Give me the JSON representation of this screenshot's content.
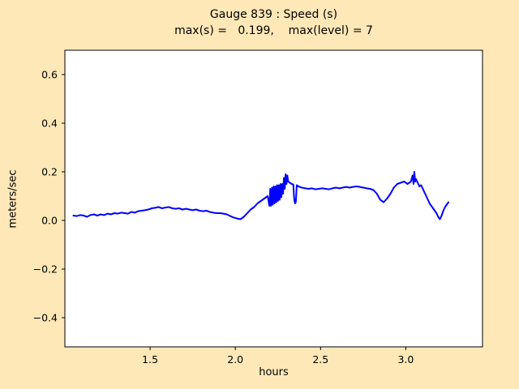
{
  "figure": {
    "background_color": "#ffe8b8",
    "plot_background": "#ffffff",
    "border_color": "#000000"
  },
  "chart_data": {
    "type": "line",
    "title": "Gauge 839 : Speed (s)",
    "subtitle": "max(s) =   0.199,    max(level) = 7",
    "xlabel": "hours",
    "ylabel": "meters/sec",
    "xlim": [
      1.0,
      3.45
    ],
    "ylim": [
      -0.52,
      0.7
    ],
    "xticks": [
      1.5,
      2.0,
      2.5,
      3.0
    ],
    "yticks": [
      -0.4,
      -0.2,
      0.0,
      0.2,
      0.4,
      0.6
    ],
    "grid": false,
    "legend": null,
    "max_s": 0.199,
    "max_level": 7,
    "series": [
      {
        "name": "speed",
        "color": "#0000ff",
        "points": [
          [
            1.05,
            0.02
          ],
          [
            1.07,
            0.018
          ],
          [
            1.09,
            0.022
          ],
          [
            1.11,
            0.02
          ],
          [
            1.13,
            0.015
          ],
          [
            1.15,
            0.022
          ],
          [
            1.17,
            0.025
          ],
          [
            1.19,
            0.02
          ],
          [
            1.21,
            0.025
          ],
          [
            1.23,
            0.022
          ],
          [
            1.25,
            0.028
          ],
          [
            1.27,
            0.025
          ],
          [
            1.29,
            0.03
          ],
          [
            1.31,
            0.028
          ],
          [
            1.33,
            0.032
          ],
          [
            1.35,
            0.03
          ],
          [
            1.37,
            0.028
          ],
          [
            1.39,
            0.035
          ],
          [
            1.41,
            0.032
          ],
          [
            1.43,
            0.038
          ],
          [
            1.45,
            0.04
          ],
          [
            1.47,
            0.042
          ],
          [
            1.49,
            0.045
          ],
          [
            1.51,
            0.05
          ],
          [
            1.53,
            0.052
          ],
          [
            1.55,
            0.055
          ],
          [
            1.57,
            0.05
          ],
          [
            1.59,
            0.053
          ],
          [
            1.61,
            0.055
          ],
          [
            1.63,
            0.05
          ],
          [
            1.65,
            0.048
          ],
          [
            1.67,
            0.05
          ],
          [
            1.69,
            0.045
          ],
          [
            1.71,
            0.048
          ],
          [
            1.73,
            0.045
          ],
          [
            1.75,
            0.042
          ],
          [
            1.77,
            0.045
          ],
          [
            1.79,
            0.04
          ],
          [
            1.81,
            0.038
          ],
          [
            1.83,
            0.04
          ],
          [
            1.85,
            0.035
          ],
          [
            1.87,
            0.032
          ],
          [
            1.89,
            0.03
          ],
          [
            1.91,
            0.03
          ],
          [
            1.93,
            0.028
          ],
          [
            1.95,
            0.025
          ],
          [
            1.97,
            0.018
          ],
          [
            1.99,
            0.012
          ],
          [
            2.01,
            0.008
          ],
          [
            2.03,
            0.005
          ],
          [
            2.05,
            0.015
          ],
          [
            2.07,
            0.03
          ],
          [
            2.09,
            0.045
          ],
          [
            2.11,
            0.055
          ],
          [
            2.13,
            0.07
          ],
          [
            2.15,
            0.08
          ],
          [
            2.17,
            0.09
          ],
          [
            2.19,
            0.1
          ],
          [
            2.2,
            0.06
          ],
          [
            2.205,
            0.13
          ],
          [
            2.21,
            0.06
          ],
          [
            2.215,
            0.135
          ],
          [
            2.22,
            0.065
          ],
          [
            2.225,
            0.14
          ],
          [
            2.23,
            0.07
          ],
          [
            2.235,
            0.14
          ],
          [
            2.24,
            0.075
          ],
          [
            2.245,
            0.145
          ],
          [
            2.25,
            0.08
          ],
          [
            2.255,
            0.145
          ],
          [
            2.26,
            0.085
          ],
          [
            2.265,
            0.15
          ],
          [
            2.27,
            0.095
          ],
          [
            2.275,
            0.15
          ],
          [
            2.28,
            0.11
          ],
          [
            2.285,
            0.175
          ],
          [
            2.29,
            0.13
          ],
          [
            2.295,
            0.19
          ],
          [
            2.3,
            0.15
          ],
          [
            2.305,
            0.185
          ],
          [
            2.31,
            0.16
          ],
          [
            2.32,
            0.155
          ],
          [
            2.33,
            0.15
          ],
          [
            2.34,
            0.148
          ],
          [
            2.345,
            0.09
          ],
          [
            2.35,
            0.07
          ],
          [
            2.355,
            0.075
          ],
          [
            2.36,
            0.145
          ],
          [
            2.37,
            0.14
          ],
          [
            2.39,
            0.135
          ],
          [
            2.41,
            0.132
          ],
          [
            2.43,
            0.13
          ],
          [
            2.45,
            0.132
          ],
          [
            2.47,
            0.128
          ],
          [
            2.49,
            0.13
          ],
          [
            2.51,
            0.132
          ],
          [
            2.53,
            0.13
          ],
          [
            2.55,
            0.128
          ],
          [
            2.57,
            0.132
          ],
          [
            2.59,
            0.135
          ],
          [
            2.61,
            0.132
          ],
          [
            2.63,
            0.135
          ],
          [
            2.65,
            0.138
          ],
          [
            2.67,
            0.135
          ],
          [
            2.69,
            0.138
          ],
          [
            2.71,
            0.14
          ],
          [
            2.73,
            0.138
          ],
          [
            2.75,
            0.135
          ],
          [
            2.77,
            0.132
          ],
          [
            2.79,
            0.13
          ],
          [
            2.81,
            0.125
          ],
          [
            2.83,
            0.11
          ],
          [
            2.85,
            0.085
          ],
          [
            2.87,
            0.075
          ],
          [
            2.89,
            0.09
          ],
          [
            2.91,
            0.11
          ],
          [
            2.93,
            0.135
          ],
          [
            2.95,
            0.15
          ],
          [
            2.97,
            0.155
          ],
          [
            2.99,
            0.16
          ],
          [
            3.01,
            0.15
          ],
          [
            3.03,
            0.16
          ],
          [
            3.04,
            0.185
          ],
          [
            3.045,
            0.15
          ],
          [
            3.05,
            0.2
          ],
          [
            3.055,
            0.16
          ],
          [
            3.06,
            0.17
          ],
          [
            3.07,
            0.155
          ],
          [
            3.08,
            0.14
          ],
          [
            3.09,
            0.145
          ],
          [
            3.1,
            0.13
          ],
          [
            3.12,
            0.1
          ],
          [
            3.14,
            0.07
          ],
          [
            3.16,
            0.05
          ],
          [
            3.18,
            0.03
          ],
          [
            3.19,
            0.015
          ],
          [
            3.2,
            0.005
          ],
          [
            3.21,
            0.02
          ],
          [
            3.22,
            0.04
          ],
          [
            3.23,
            0.055
          ],
          [
            3.24,
            0.065
          ],
          [
            3.25,
            0.075
          ]
        ]
      }
    ]
  }
}
